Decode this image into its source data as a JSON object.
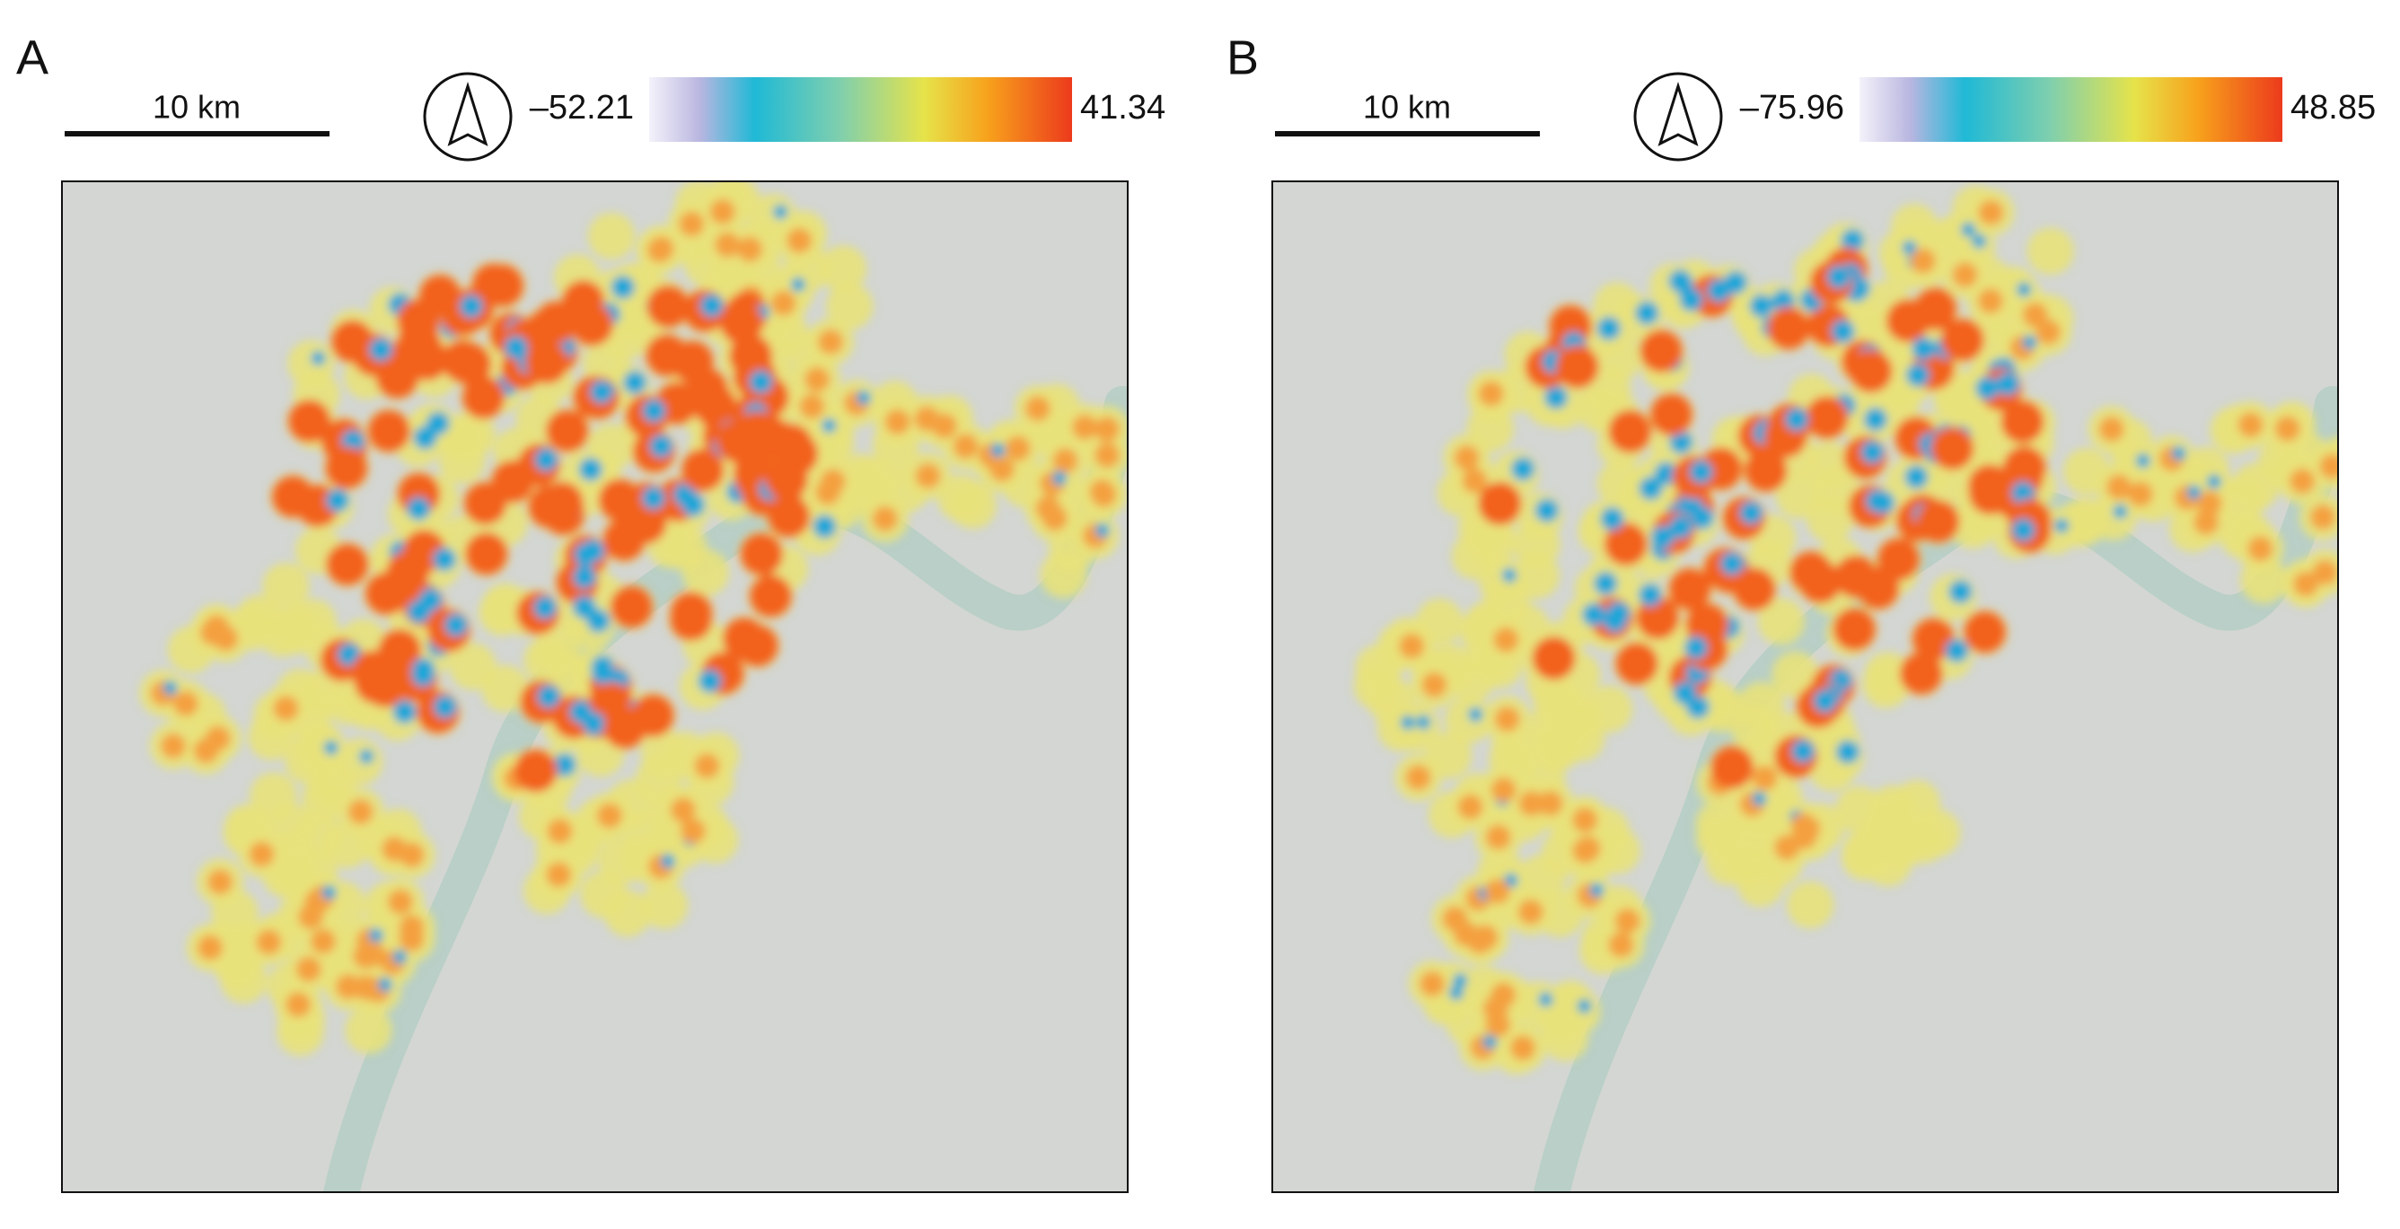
{
  "panels": [
    {
      "label": "A",
      "scale_bar": "10 km",
      "colorbar": {
        "min_label": "–52.21",
        "max_label": "41.34"
      }
    },
    {
      "label": "B",
      "scale_bar": "10 km",
      "colorbar": {
        "min_label": "–75.96",
        "max_label": "48.85"
      }
    }
  ]
}
